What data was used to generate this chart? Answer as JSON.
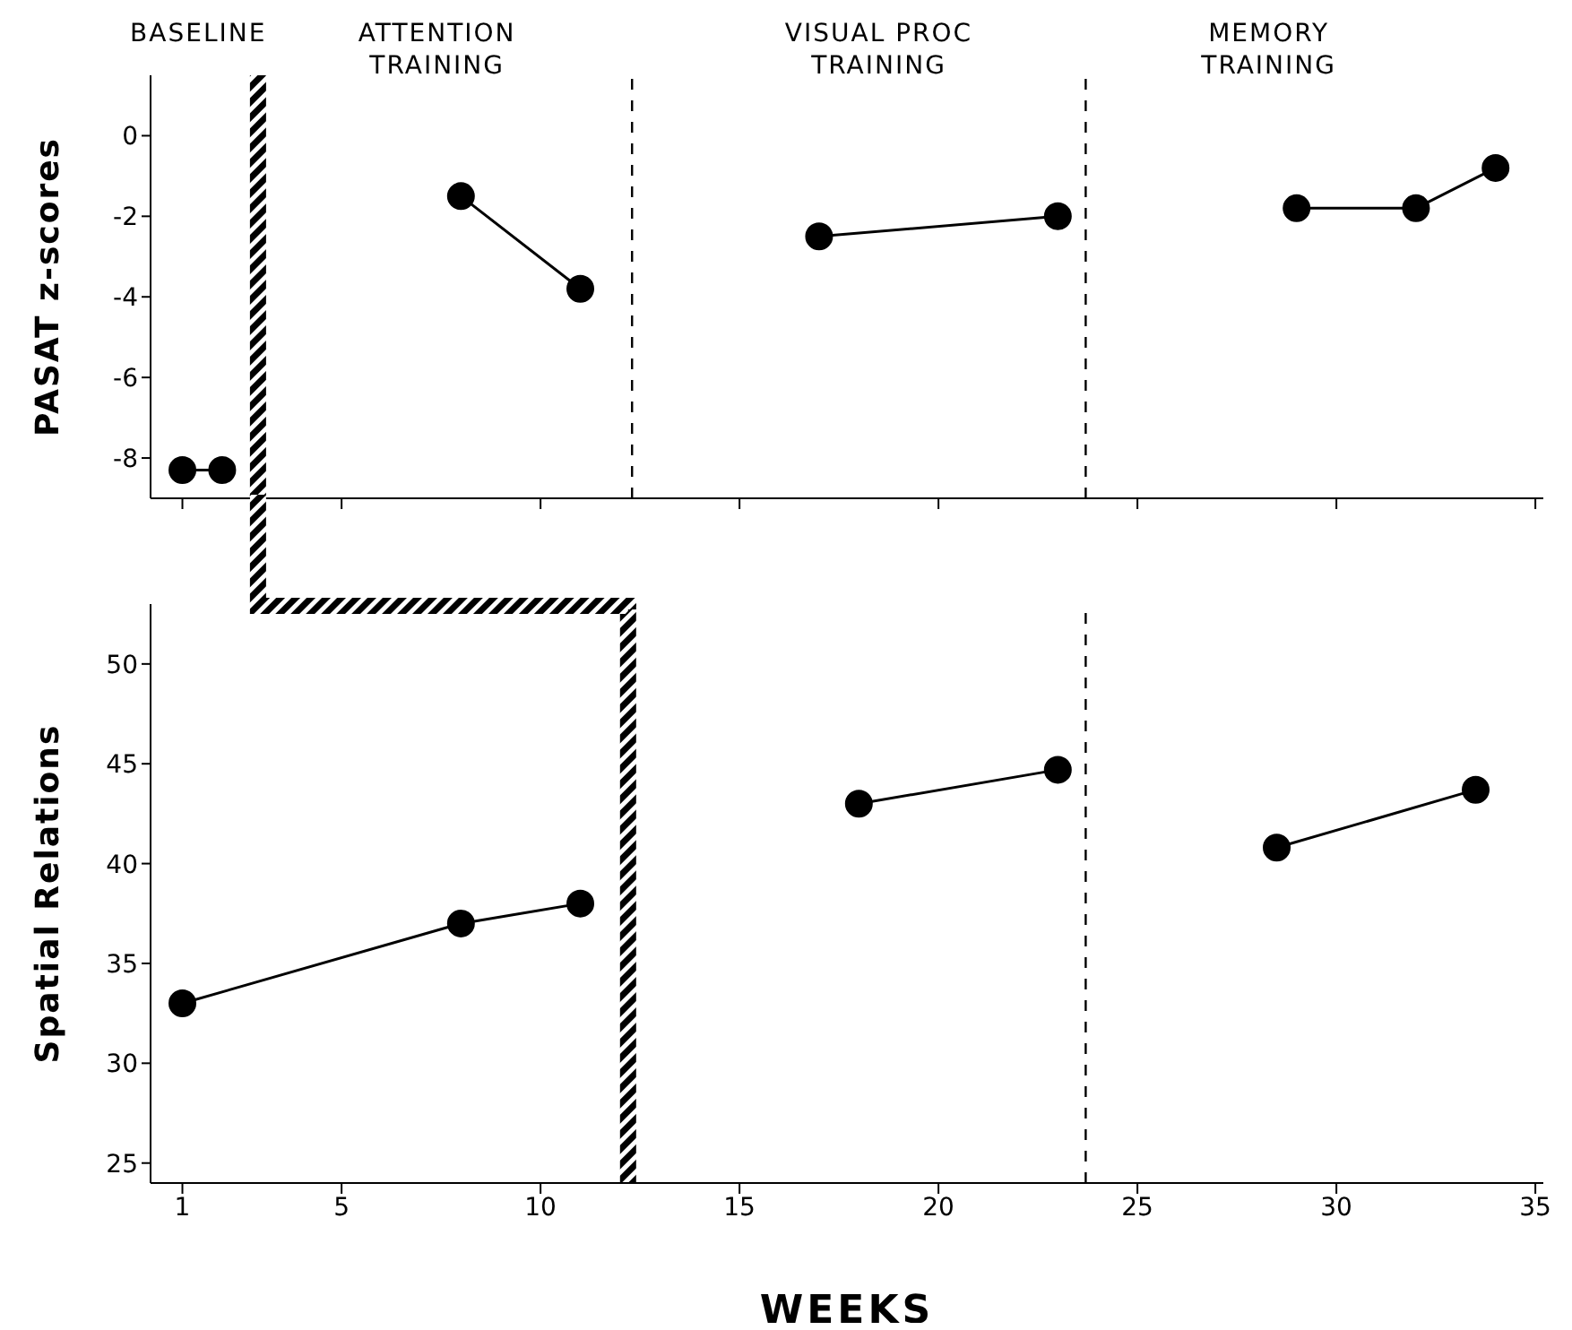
{
  "chart_data": [
    {
      "type": "line",
      "ylabel": "PASAT  z-scores",
      "xlim": [
        0.2,
        35.2
      ],
      "xticks": [
        {
          "value": 1,
          "label": null
        },
        {
          "value": 5,
          "label": null
        },
        {
          "value": 10,
          "label": null
        },
        {
          "value": 15,
          "label": null
        },
        {
          "value": 20,
          "label": null
        },
        {
          "value": 25,
          "label": null
        },
        {
          "value": 30,
          "label": null
        },
        {
          "value": 35,
          "label": null
        }
      ],
      "ylim": [
        -9,
        1.5
      ],
      "yticks": [
        -8,
        -6,
        -4,
        -2,
        0
      ],
      "tick_labels": "y",
      "marker": "circle",
      "line_style": "solid",
      "annotations": [
        "BASELINE",
        "ATTENTION TRAINING",
        "VISUAL PROC TRAINING",
        "MEMORY TRAINING"
      ],
      "ref_lines": [
        {
          "axis": "x",
          "value": 2.9,
          "color": "#000000",
          "line_style": "solid"
        },
        {
          "axis": "x",
          "value": 12.3,
          "color": "#000000",
          "line_style": "dashed"
        },
        {
          "axis": "x",
          "value": 23.7,
          "color": "#000000",
          "line_style": "dashed"
        }
      ],
      "series": [
        {
          "color": "#000000",
          "x": [
            1,
            2
          ],
          "values": [
            -8.3,
            -8.3
          ]
        },
        {
          "color": "#000000",
          "x": [
            8,
            11
          ],
          "values": [
            -1.5,
            -3.8
          ]
        },
        {
          "color": "#000000",
          "x": [
            17,
            23
          ],
          "values": [
            -2.5,
            -2
          ]
        },
        {
          "color": "#000000",
          "x": [
            29,
            32,
            34
          ],
          "values": [
            -1.8,
            -1.8,
            -0.8
          ]
        }
      ]
    },
    {
      "type": "line",
      "ylabel": "Spatial Relations",
      "xlabel": "WEEKS",
      "xlim": [
        0.2,
        35.2
      ],
      "xticks": [
        1,
        5,
        10,
        15,
        20,
        25,
        30,
        35
      ],
      "ylim": [
        24,
        53
      ],
      "yticks": [
        25,
        30,
        35,
        40,
        45,
        50
      ],
      "marker": "circle",
      "line_style": "solid",
      "ref_lines": [
        {
          "axis": "x",
          "value": 12.2,
          "color": "#000000",
          "line_style": "solid"
        },
        {
          "axis": "x",
          "value": 23.7,
          "color": "#000000",
          "line_style": "dashed"
        }
      ],
      "series": [
        {
          "color": "#000000",
          "x": [
            1,
            8,
            11
          ],
          "values": [
            33,
            37,
            38
          ]
        },
        {
          "color": "#000000",
          "x": [
            18,
            23
          ],
          "values": [
            43,
            44.7
          ]
        },
        {
          "color": "#000000",
          "x": [
            28.5,
            33.5
          ],
          "values": [
            40.8,
            43.7
          ]
        }
      ]
    }
  ]
}
